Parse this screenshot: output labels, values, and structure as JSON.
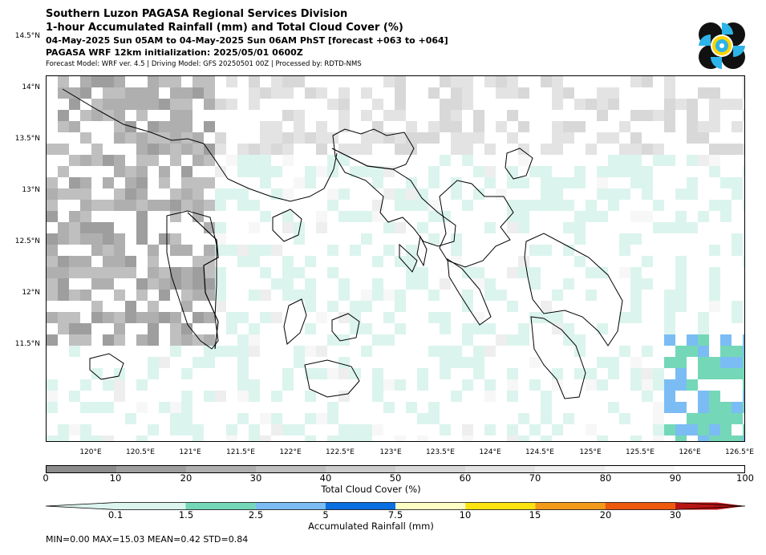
{
  "header": {
    "line1": "Southern Luzon PAGASA Regional Services Division",
    "line2": "1-hour Accumulated Rainfall (mm) and Total Cloud Cover (%)",
    "line3": "04-May-2025 Sun 05AM to 04-May-2025 Sun 06AM PhST [forecast +063 to +064]",
    "line4": "PAGASA WRF 12km initialization: 2025/05/01 0600Z",
    "line5": "Forecast Model: WRF ver. 4.5 | Driving Model: GFS 20250501 00Z | Processed by: RDTD-NMS"
  },
  "map": {
    "lat_labels": [
      "14.5°N",
      "14°N",
      "13.5°N",
      "13°N",
      "12.5°N",
      "12°N",
      "11.5°N"
    ],
    "lon_labels": [
      "120°E",
      "120.5°E",
      "121°E",
      "121.5°E",
      "122°E",
      "122.5°E",
      "123°E",
      "123.5°E",
      "124°E",
      "124.5°E",
      "125°E",
      "125.5°E",
      "126°E",
      "126.5°E"
    ]
  },
  "cloud_legend": {
    "ticks": [
      "0",
      "10",
      "20",
      "30",
      "40",
      "50",
      "60",
      "70",
      "80",
      "90",
      "100"
    ],
    "label": "Total Cloud Cover (%)",
    "colors": [
      "#8c8c8c",
      "#9e9e9e",
      "#afafaf",
      "#bfbfbf",
      "#cccccc",
      "#d8d8d8",
      "#e3e3e3",
      "#eeeeee",
      "#f7f7f7",
      "#ffffff"
    ]
  },
  "rain_legend": {
    "ticks": [
      "0.1",
      "1.5",
      "2.5",
      "5",
      "7.5",
      "10",
      "15",
      "20",
      "30"
    ],
    "label": "Accumulated Rainfall (mm)",
    "colors": [
      "#dcf4ee",
      "#74d8b8",
      "#7bbcf4",
      "#0a6fe0",
      "#fdfdc6",
      "#fbe30f",
      "#f39a1b",
      "#ee5a0b",
      "#b71414"
    ]
  },
  "stats": "MIN=0.00   MAX=15.03   MEAN=0.42   STD=0.84"
}
